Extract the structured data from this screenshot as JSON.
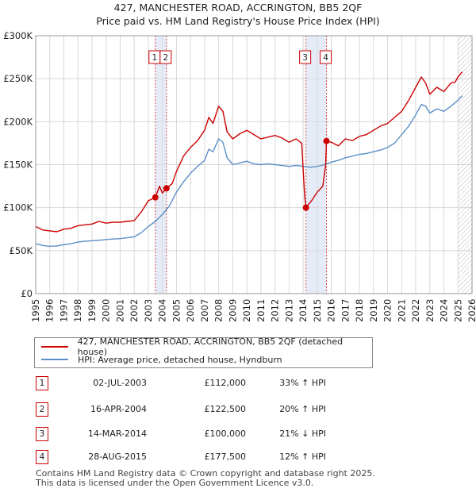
{
  "title_line1": "427, MANCHESTER ROAD, ACCRINGTON, BB5 2QF",
  "title_line2": "Price paid vs. HM Land Registry's House Price Index (HPI)",
  "colors": {
    "property": "#cc0000",
    "hpi": "#5b8fc7",
    "band": "#e6ecf7",
    "grid": "#d8d8d8",
    "marker_line": "#cc0000"
  },
  "chart_data": {
    "type": "line",
    "x_range": [
      1995,
      2026
    ],
    "y_range": [
      0,
      300000
    ],
    "y_ticks": [
      0,
      50000,
      100000,
      150000,
      200000,
      250000,
      300000
    ],
    "y_tick_labels": [
      "£0",
      "£50K",
      "£100K",
      "£150K",
      "£200K",
      "£250K",
      "£300K"
    ],
    "x_ticks": [
      1995,
      1996,
      1997,
      1998,
      1999,
      2000,
      2001,
      2002,
      2003,
      2004,
      2005,
      2006,
      2007,
      2008,
      2009,
      2010,
      2011,
      2012,
      2013,
      2014,
      2015,
      2016,
      2017,
      2018,
      2019,
      2020,
      2021,
      2022,
      2023,
      2024,
      2025,
      2026
    ],
    "x_tick_labels": [
      "1995",
      "1996",
      "1997",
      "1998",
      "1999",
      "2000",
      "2001",
      "2002",
      "2003",
      "2004",
      "2005",
      "2006",
      "2007",
      "2008",
      "2009",
      "2010",
      "2011",
      "2012",
      "2013",
      "2014",
      "2015",
      "2016",
      "2017",
      "2018",
      "2019",
      "2020",
      "2021",
      "2022",
      "2023",
      "2024",
      "2025",
      "2026"
    ],
    "hatch_from": 2025.0,
    "shaded_bands": [
      [
        2003.5,
        2004.29
      ],
      [
        2014.2,
        2015.66
      ]
    ],
    "series": [
      {
        "name": "427, MANCHESTER ROAD, ACCRINGTON, BB5 2QF (detached house)",
        "color": "#cc0000",
        "x": [
          1995.0,
          1995.5,
          1996.0,
          1996.5,
          1997.0,
          1997.5,
          1998.0,
          1998.5,
          1999.0,
          1999.5,
          2000.0,
          2000.5,
          2001.0,
          2001.5,
          2002.0,
          2002.5,
          2003.0,
          2003.5,
          2003.8,
          2004.0,
          2004.29,
          2004.7,
          2005.0,
          2005.5,
          2006.0,
          2006.5,
          2007.0,
          2007.3,
          2007.6,
          2008.0,
          2008.3,
          2008.6,
          2009.0,
          2009.5,
          2010.0,
          2010.5,
          2011.0,
          2011.5,
          2012.0,
          2012.5,
          2013.0,
          2013.5,
          2013.9,
          2014.1,
          2014.2,
          2014.6,
          2015.0,
          2015.4,
          2015.6,
          2015.66,
          2016.0,
          2016.5,
          2017.0,
          2017.5,
          2018.0,
          2018.5,
          2019.0,
          2019.5,
          2020.0,
          2020.5,
          2021.0,
          2021.5,
          2022.0,
          2022.4,
          2022.7,
          2023.0,
          2023.5,
          2024.0,
          2024.5,
          2024.8,
          2025.0,
          2025.3
        ],
        "values": [
          78000,
          74000,
          73000,
          72000,
          75000,
          76000,
          79000,
          80000,
          81000,
          84000,
          82000,
          83000,
          83000,
          84000,
          85000,
          95000,
          108000,
          112000,
          125000,
          117000,
          122500,
          128000,
          142000,
          160000,
          170000,
          178000,
          190000,
          205000,
          198000,
          218000,
          212000,
          188000,
          180000,
          186000,
          190000,
          185000,
          180000,
          182000,
          184000,
          181000,
          176000,
          180000,
          175000,
          115000,
          100000,
          108000,
          118000,
          125000,
          150000,
          177500,
          176000,
          172000,
          180000,
          178000,
          183000,
          185000,
          190000,
          195000,
          198000,
          205000,
          212000,
          225000,
          240000,
          252000,
          245000,
          232000,
          240000,
          235000,
          245000,
          246000,
          252000,
          258000
        ]
      },
      {
        "name": "HPI: Average price, detached house, Hyndburn",
        "color": "#5b8fc7",
        "x": [
          1995.0,
          1995.5,
          1996.0,
          1996.5,
          1997.0,
          1997.5,
          1998.0,
          1998.5,
          1999.0,
          1999.5,
          2000.0,
          2000.5,
          2001.0,
          2001.5,
          2002.0,
          2002.5,
          2003.0,
          2003.5,
          2004.0,
          2004.5,
          2005.0,
          2005.5,
          2006.0,
          2006.5,
          2007.0,
          2007.3,
          2007.6,
          2008.0,
          2008.3,
          2008.6,
          2009.0,
          2009.5,
          2010.0,
          2010.5,
          2011.0,
          2011.5,
          2012.0,
          2012.5,
          2013.0,
          2013.5,
          2014.0,
          2014.5,
          2015.0,
          2015.5,
          2016.0,
          2016.5,
          2017.0,
          2017.5,
          2018.0,
          2018.5,
          2019.0,
          2019.5,
          2020.0,
          2020.5,
          2021.0,
          2021.5,
          2022.0,
          2022.4,
          2022.7,
          2023.0,
          2023.5,
          2024.0,
          2024.5,
          2025.0,
          2025.3
        ],
        "values": [
          58000,
          56000,
          55000,
          55500,
          57000,
          58000,
          60000,
          61000,
          61500,
          62000,
          63000,
          63500,
          64000,
          65000,
          66000,
          71000,
          78000,
          84000,
          92000,
          102000,
          118000,
          130000,
          140000,
          148000,
          155000,
          168000,
          165000,
          180000,
          176000,
          158000,
          150000,
          152000,
          154000,
          151000,
          150000,
          151000,
          150000,
          149000,
          148000,
          149000,
          148000,
          147000,
          148000,
          150000,
          153000,
          155000,
          158000,
          160000,
          162000,
          163000,
          165000,
          167000,
          170000,
          175000,
          185000,
          195000,
          208000,
          220000,
          218000,
          210000,
          215000,
          212000,
          218000,
          225000,
          230000
        ]
      }
    ],
    "transactions": [
      {
        "id": "1",
        "x": 2003.5,
        "price": 112000
      },
      {
        "id": "2",
        "x": 2004.29,
        "price": 122500
      },
      {
        "id": "3",
        "x": 2014.2,
        "price": 100000
      },
      {
        "id": "4",
        "x": 2015.66,
        "price": 177500
      }
    ]
  },
  "legend": {
    "property_label": "427, MANCHESTER ROAD, ACCRINGTON, BB5 2QF (detached house)",
    "hpi_label": "HPI: Average price, detached house, Hyndburn"
  },
  "table": [
    {
      "id": "1",
      "date": "02-JUL-2003",
      "price": "£112,000",
      "hpi": "33% ↑ HPI"
    },
    {
      "id": "2",
      "date": "16-APR-2004",
      "price": "£122,500",
      "hpi": "20% ↑ HPI"
    },
    {
      "id": "3",
      "date": "14-MAR-2014",
      "price": "£100,000",
      "hpi": "21% ↓ HPI"
    },
    {
      "id": "4",
      "date": "28-AUG-2015",
      "price": "£177,500",
      "hpi": "12% ↑ HPI"
    }
  ],
  "footer_line1": "Contains HM Land Registry data © Crown copyright and database right 2025.",
  "footer_line2": "This data is licensed under the Open Government Licence v3.0."
}
